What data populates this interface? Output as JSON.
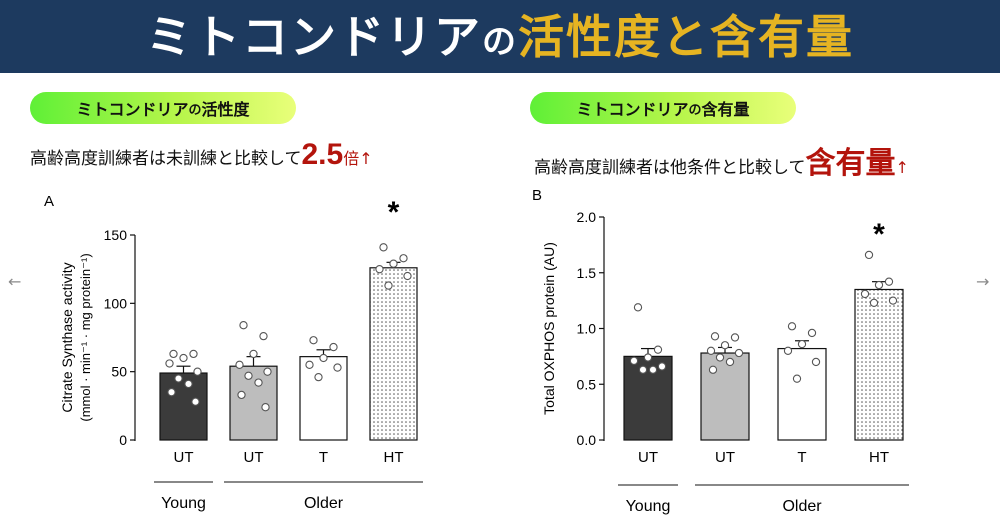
{
  "header": {
    "title_main": "ミトコンドリア",
    "title_particle": "の",
    "title_accent": "活性度と含有量",
    "bg_color": "#1d3a5f",
    "accent_color": "#e6b422"
  },
  "left": {
    "pill_main": "ミトコンドリア",
    "pill_particle": "の",
    "pill_end": "活性度",
    "caption_text": "高齢高度訓練者は未訓練と比較して",
    "caption_value": "2.5",
    "caption_unit": "倍",
    "caption_arrow": "↑"
  },
  "right": {
    "pill_main": "ミトコンドリア",
    "pill_particle": "の",
    "pill_end": "含有量",
    "caption_text": "高齢高度訓練者は他条件と比較して",
    "caption_value": "含有量",
    "caption_arrow": "↑"
  },
  "nav": {
    "prev_icon": "←",
    "next_icon": "→"
  },
  "chart_data": [
    {
      "type": "bar",
      "panel_label": "A",
      "ylabel_line1": "Citrate Synthase activity",
      "ylabel_line2": "(mmol · min⁻¹ · mg protein⁻¹)",
      "ylim": [
        0,
        150
      ],
      "yticks": [
        0,
        50,
        100,
        150
      ],
      "categories": [
        "UT",
        "UT",
        "T",
        "HT"
      ],
      "values": [
        49,
        54,
        61,
        126
      ],
      "errors": [
        5,
        7,
        5,
        4
      ],
      "fills": [
        "#3b3b3b",
        "#bdbdbd",
        "#ffffff",
        "dots"
      ],
      "points": [
        [
          63,
          63,
          60,
          56,
          50,
          45,
          41,
          35,
          28
        ],
        [
          84,
          76,
          63,
          55,
          50,
          47,
          42,
          33,
          24
        ],
        [
          73,
          68,
          60,
          55,
          53,
          46
        ],
        [
          141,
          133,
          129,
          125,
          120,
          113
        ]
      ],
      "significance": [
        "",
        "",
        "",
        "*"
      ],
      "groups": [
        {
          "label": "Young",
          "from": 0,
          "to": 0
        },
        {
          "label": "Older",
          "from": 1,
          "to": 3
        }
      ]
    },
    {
      "type": "bar",
      "panel_label": "B",
      "ylabel_line1": "Total OXPHOS protein (AU)",
      "ylim": [
        0,
        2.0
      ],
      "yticks": [
        "0.0",
        "0.5",
        "1.0",
        "1.5",
        "2.0"
      ],
      "categories": [
        "UT",
        "UT",
        "T",
        "HT"
      ],
      "values": [
        0.75,
        0.78,
        0.82,
        1.35
      ],
      "errors": [
        0.07,
        0.05,
        0.07,
        0.07
      ],
      "fills": [
        "#3b3b3b",
        "#bdbdbd",
        "#ffffff",
        "dots"
      ],
      "points": [
        [
          1.19,
          0.81,
          0.74,
          0.71,
          0.66,
          0.63,
          0.63
        ],
        [
          0.93,
          0.92,
          0.85,
          0.8,
          0.78,
          0.74,
          0.7,
          0.63
        ],
        [
          1.02,
          0.96,
          0.86,
          0.8,
          0.7,
          0.55
        ],
        [
          1.66,
          1.42,
          1.39,
          1.31,
          1.25,
          1.23
        ]
      ],
      "significance": [
        "",
        "",
        "",
        "*"
      ],
      "groups": [
        {
          "label": "Young",
          "from": 0,
          "to": 0
        },
        {
          "label": "Older",
          "from": 1,
          "to": 3
        }
      ]
    }
  ]
}
